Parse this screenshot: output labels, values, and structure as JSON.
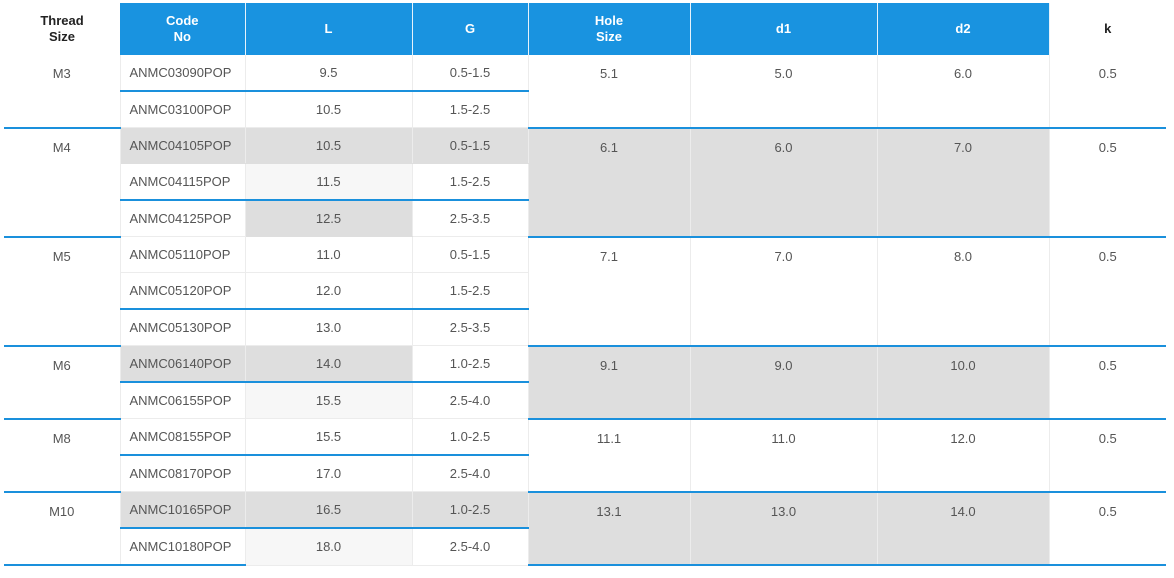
{
  "headers": [
    "Thread\nSize",
    "Code\nNo",
    "L",
    "G",
    "Hole\nSize",
    "d1",
    "d2",
    "k"
  ],
  "groups": [
    {
      "thread": "M3",
      "hole": "5.1",
      "d1": "5.0",
      "d2": "6.0",
      "k": "0.5",
      "shaded": false,
      "rows": [
        {
          "code": "ANMC03090POP",
          "L": "9.5",
          "G": "0.5-1.5"
        },
        {
          "code": "ANMC03100POP",
          "L": "10.5",
          "G": "1.5-2.5"
        }
      ]
    },
    {
      "thread": "M4",
      "hole": "6.1",
      "d1": "6.0",
      "d2": "7.0",
      "k": "0.5",
      "shaded": true,
      "rows": [
        {
          "code": "ANMC04105POP",
          "L": "10.5",
          "G": "0.5-1.5"
        },
        {
          "code": "ANMC04115POP",
          "L": "11.5",
          "G": "1.5-2.5"
        },
        {
          "code": "ANMC04125POP",
          "L": "12.5",
          "G": "2.5-3.5"
        }
      ]
    },
    {
      "thread": "M5",
      "hole": "7.1",
      "d1": "7.0",
      "d2": "8.0",
      "k": "0.5",
      "shaded": false,
      "rows": [
        {
          "code": "ANMC05110POP",
          "L": "11.0",
          "G": "0.5-1.5"
        },
        {
          "code": "ANMC05120POP",
          "L": "12.0",
          "G": "1.5-2.5"
        },
        {
          "code": "ANMC05130POP",
          "L": "13.0",
          "G": "2.5-3.5"
        }
      ]
    },
    {
      "thread": "M6",
      "hole": "9.1",
      "d1": "9.0",
      "d2": "10.0",
      "k": "0.5",
      "shaded": true,
      "rows": [
        {
          "code": "ANMC06140POP",
          "L": "14.0",
          "G": "1.0-2.5"
        },
        {
          "code": "ANMC06155POP",
          "L": "15.5",
          "G": "2.5-4.0"
        }
      ]
    },
    {
      "thread": "M8",
      "hole": "11.1",
      "d1": "11.0",
      "d2": "12.0",
      "k": "0.5",
      "shaded": false,
      "rows": [
        {
          "code": "ANMC08155POP",
          "L": "15.5",
          "G": "1.0-2.5"
        },
        {
          "code": "ANMC08170POP",
          "L": "17.0",
          "G": "2.5-4.0"
        }
      ]
    },
    {
      "thread": "M10",
      "hole": "13.1",
      "d1": "13.0",
      "d2": "14.0",
      "k": "0.5",
      "shaded": true,
      "rows": [
        {
          "code": "ANMC10165POP",
          "L": "16.5",
          "G": "1.0-2.5"
        },
        {
          "code": "ANMC10180POP",
          "L": "18.0",
          "G": "2.5-4.0"
        }
      ]
    }
  ]
}
